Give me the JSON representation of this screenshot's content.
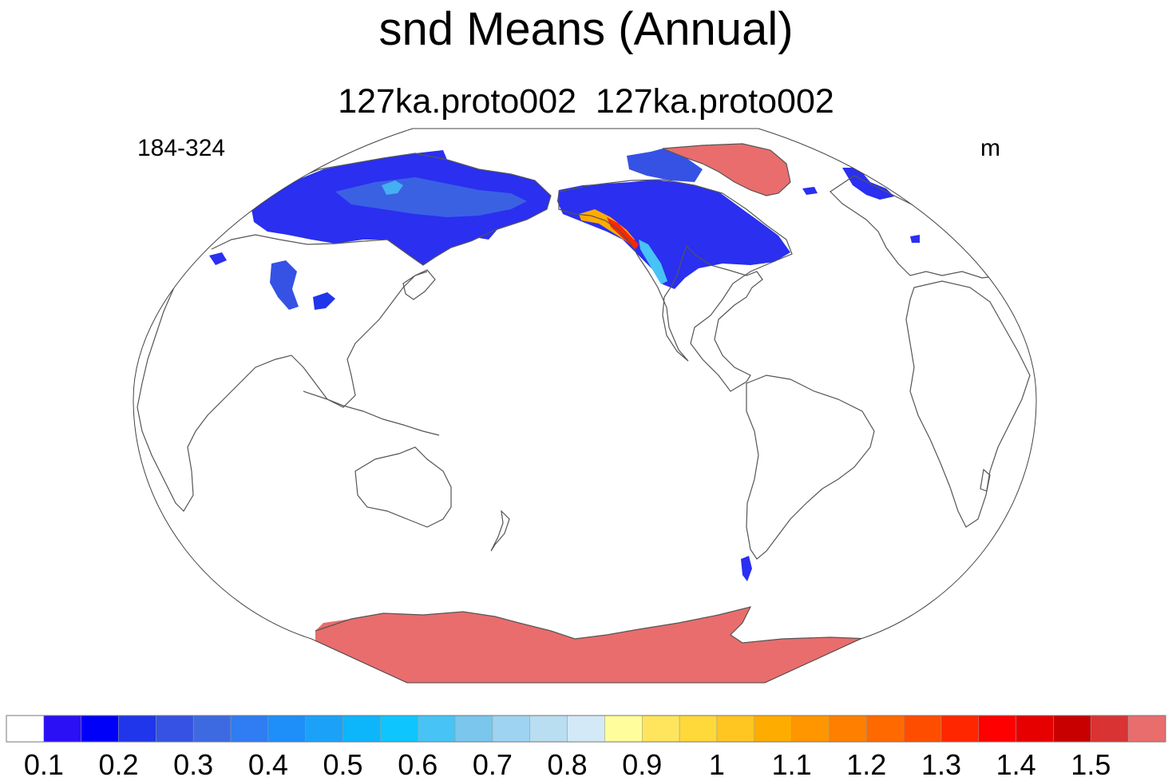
{
  "title": "snd Means (Annual)",
  "subtitle": "127ka.proto002  127ka.proto002",
  "left_label": "184-324",
  "right_label": "m",
  "colorbar": {
    "colors": [
      "#ffffff",
      "#2b0ff5",
      "#0000f8",
      "#1f36ea",
      "#3552e4",
      "#3e6ae1",
      "#2f7cf3",
      "#1e8ef9",
      "#1ba2f8",
      "#0db5fb",
      "#0ec6fd",
      "#47c3f5",
      "#7ac6ec",
      "#9ed3f2",
      "#b9ddf1",
      "#d3e9f7",
      "#fffd9c",
      "#ffe55e",
      "#ffd83a",
      "#ffc521",
      "#ffac00",
      "#ff9600",
      "#ff8000",
      "#ff6900",
      "#ff4d00",
      "#ff2600",
      "#ff0000",
      "#e60000",
      "#c80000",
      "#d93333",
      "#e96d6d"
    ],
    "labels": [
      "0.1",
      "0.2",
      "0.3",
      "0.4",
      "0.5",
      "0.6",
      "0.7",
      "0.8",
      "0.9",
      "1",
      "1.1",
      "1.2",
      "1.3",
      "1.4",
      "1.5"
    ]
  }
}
